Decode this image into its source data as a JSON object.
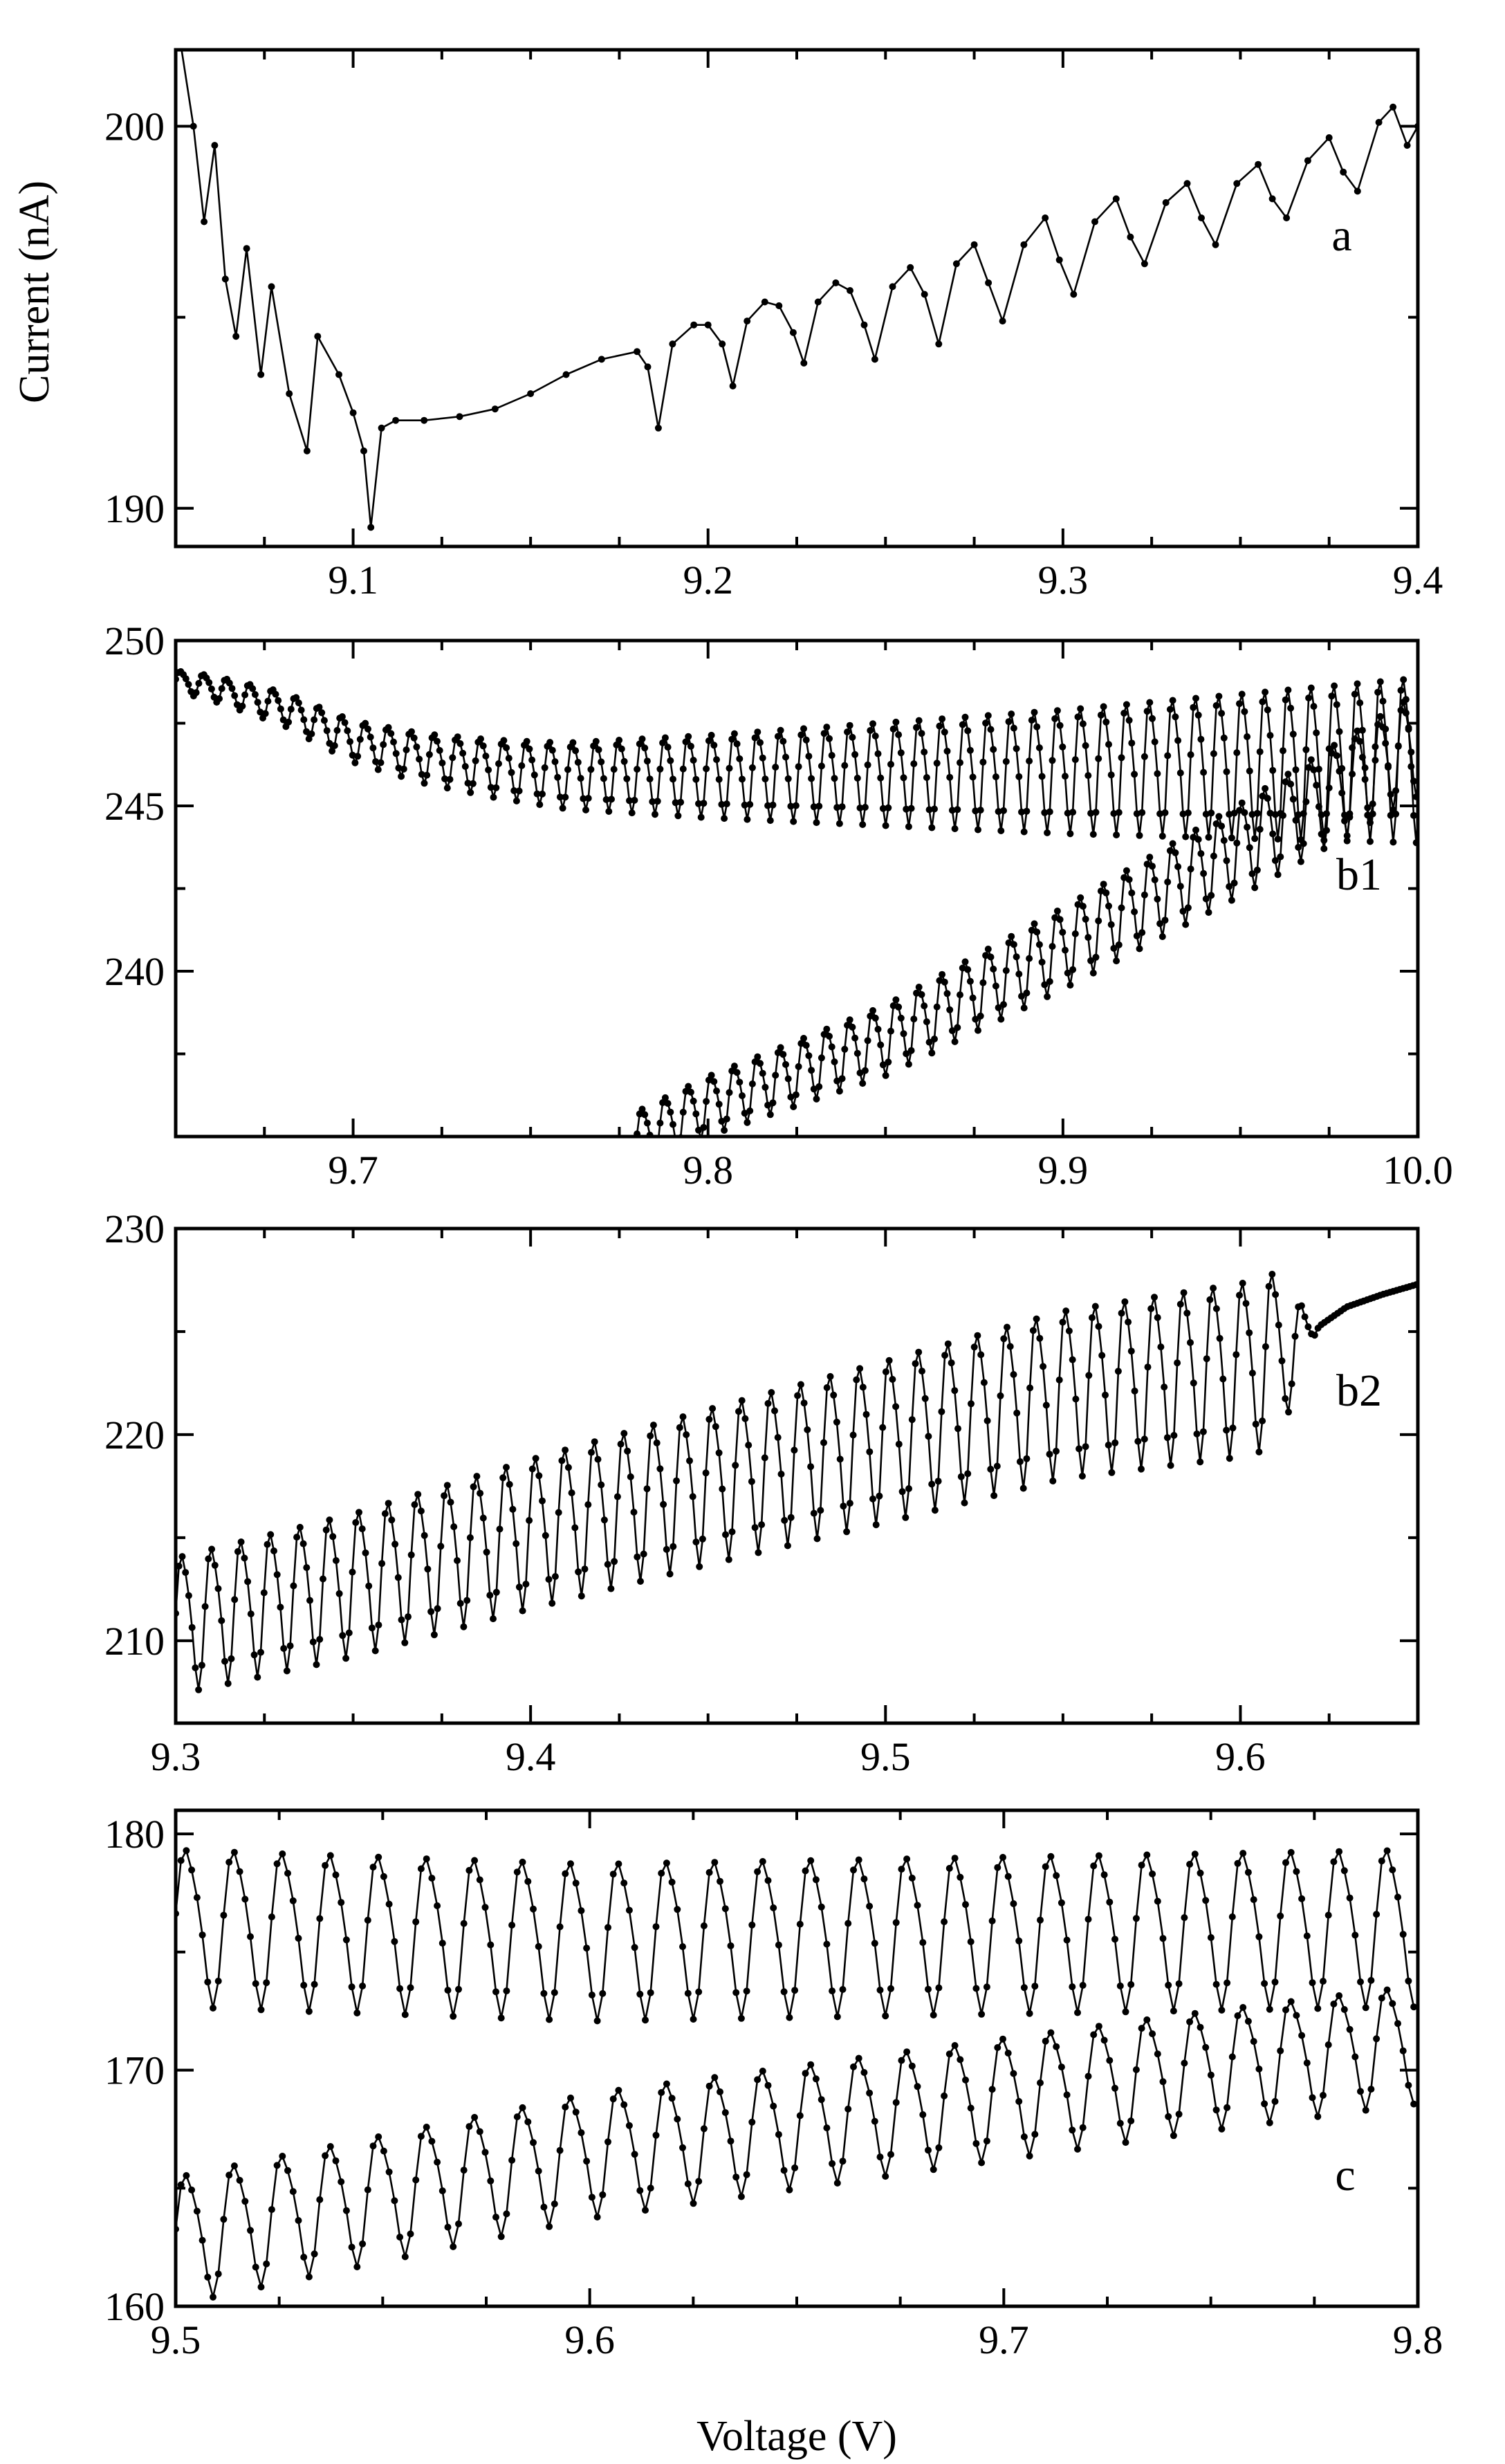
{
  "chart_data": [
    {
      "panel": "a",
      "type": "line",
      "xlim": [
        9.05,
        9.4
      ],
      "ylim": [
        189,
        202
      ],
      "xticks": [
        9.1,
        9.2,
        9.3,
        9.4
      ],
      "xtick_labels": [
        "9.1",
        "9.2",
        "9.3",
        "9.4"
      ],
      "yticks": [
        190,
        200
      ],
      "ytick_labels": [
        "190",
        "200"
      ],
      "ylabel": "Current (nA)",
      "xlabel": "",
      "label": "a",
      "series": [
        {
          "points": [
            [
              9.05,
              203
            ],
            [
              9.055,
              200
            ],
            [
              9.058,
              197.5
            ],
            [
              9.061,
              199.5
            ],
            [
              9.064,
              196
            ],
            [
              9.067,
              194.5
            ],
            [
              9.07,
              196.8
            ],
            [
              9.074,
              193.5
            ],
            [
              9.077,
              195.8
            ],
            [
              9.082,
              193
            ],
            [
              9.087,
              191.5
            ],
            [
              9.09,
              194.5
            ],
            [
              9.096,
              193.5
            ],
            [
              9.1,
              192.5
            ],
            [
              9.103,
              191.5
            ],
            [
              9.105,
              189.5
            ],
            [
              9.108,
              192.1
            ],
            [
              9.112,
              192.3
            ],
            [
              9.12,
              192.3
            ],
            [
              9.13,
              192.4
            ],
            [
              9.14,
              192.6
            ],
            [
              9.15,
              193.0
            ],
            [
              9.16,
              193.5
            ],
            [
              9.17,
              193.9
            ],
            [
              9.18,
              194.1
            ],
            [
              9.183,
              193.7
            ],
            [
              9.186,
              192.1
            ],
            [
              9.19,
              194.3
            ],
            [
              9.196,
              194.8
            ],
            [
              9.2,
              194.8
            ],
            [
              9.204,
              194.3
            ],
            [
              9.207,
              193.2
            ],
            [
              9.211,
              194.9
            ],
            [
              9.216,
              195.4
            ],
            [
              9.22,
              195.3
            ],
            [
              9.224,
              194.6
            ],
            [
              9.227,
              193.8
            ],
            [
              9.231,
              195.4
            ],
            [
              9.236,
              195.9
            ],
            [
              9.24,
              195.7
            ],
            [
              9.244,
              194.8
            ],
            [
              9.247,
              193.9
            ],
            [
              9.252,
              195.8
            ],
            [
              9.257,
              196.3
            ],
            [
              9.261,
              195.6
            ],
            [
              9.265,
              194.3
            ],
            [
              9.27,
              196.4
            ],
            [
              9.275,
              196.9
            ],
            [
              9.279,
              195.9
            ],
            [
              9.283,
              194.9
            ],
            [
              9.289,
              196.9
            ],
            [
              9.295,
              197.6
            ],
            [
              9.299,
              196.5
            ],
            [
              9.303,
              195.6
            ],
            [
              9.309,
              197.5
            ],
            [
              9.315,
              198.1
            ],
            [
              9.319,
              197.1
            ],
            [
              9.323,
              196.4
            ],
            [
              9.329,
              198.0
            ],
            [
              9.335,
              198.5
            ],
            [
              9.339,
              197.6
            ],
            [
              9.343,
              196.9
            ],
            [
              9.349,
              198.5
            ],
            [
              9.355,
              199.0
            ],
            [
              9.359,
              198.1
            ],
            [
              9.363,
              197.6
            ],
            [
              9.369,
              199.1
            ],
            [
              9.375,
              199.7
            ],
            [
              9.379,
              198.8
            ],
            [
              9.383,
              198.3
            ],
            [
              9.389,
              200.1
            ],
            [
              9.393,
              200.5
            ],
            [
              9.397,
              199.5
            ],
            [
              9.4,
              200.0
            ]
          ]
        }
      ]
    },
    {
      "panel": "b1",
      "type": "line",
      "xlim": [
        9.65,
        10.0
      ],
      "ylim": [
        235,
        250
      ],
      "xticks": [
        9.7,
        9.8,
        9.9,
        10.0
      ],
      "xtick_labels": [
        "9.7",
        "9.8",
        "9.9",
        "10.0"
      ],
      "yticks": [
        240,
        245,
        250
      ],
      "ytick_labels": [
        "240",
        "245",
        "250"
      ],
      "xlabel": "",
      "ylabel": "",
      "label": "b1",
      "series": [
        {
          "points": [
            [
              9.65,
              248.8
            ],
            [
              9.66,
              248.6
            ],
            [
              9.67,
              248.3
            ],
            [
              9.68,
              248.0
            ],
            [
              9.69,
              247.5
            ],
            [
              9.7,
              247.0
            ],
            [
              9.72,
              246.5
            ],
            [
              9.74,
              246.2
            ],
            [
              9.76,
              246.0
            ],
            [
              9.8,
              246.0
            ],
            [
              9.85,
              246.1
            ],
            [
              9.9,
              246.2
            ],
            [
              9.95,
              246.4
            ],
            [
              10.0,
              246.6
            ]
          ],
          "oscillation_period": 0.0065,
          "amplitude": [
            0.3,
            2.4
          ]
        },
        {
          "points": [
            [
              9.78,
              235.0
            ],
            [
              9.8,
              236.0
            ],
            [
              9.85,
              238.0
            ],
            [
              9.9,
              240.8
            ],
            [
              9.95,
              243.8
            ],
            [
              10.0,
              247.0
            ]
          ],
          "oscillation_period": 0.0065,
          "amplitude": [
            0.8,
            1.5
          ]
        }
      ]
    },
    {
      "panel": "b2",
      "type": "line",
      "xlim": [
        9.3,
        9.65
      ],
      "ylim": [
        206,
        230
      ],
      "xticks": [
        9.3,
        9.4,
        9.5,
        9.6
      ],
      "xtick_labels": [
        "9.3",
        "9.4",
        "9.5",
        "9.6"
      ],
      "yticks": [
        210,
        220,
        230
      ],
      "ytick_labels": [
        "210",
        "220",
        "230"
      ],
      "xlabel": "",
      "ylabel": "",
      "label": "b2",
      "series": [
        {
          "points": [
            [
              9.3,
              211.0
            ],
            [
              9.35,
              213.0
            ],
            [
              9.4,
              215.5
            ],
            [
              9.45,
              217.8
            ],
            [
              9.5,
              220.0
            ],
            [
              9.55,
              222.3
            ],
            [
              9.6,
              223.5
            ],
            [
              9.61,
              224.0
            ],
            [
              9.62,
              225.0
            ],
            [
              9.63,
              226.2
            ],
            [
              9.64,
              226.8
            ],
            [
              9.65,
              227.3
            ]
          ],
          "oscillation_period": 0.0083,
          "amplitude": [
            3.2,
            4.2
          ]
        }
      ]
    },
    {
      "panel": "c",
      "type": "line",
      "xlim": [
        9.5,
        9.8
      ],
      "ylim": [
        160,
        181
      ],
      "xticks": [
        9.5,
        9.6,
        9.7,
        9.8
      ],
      "xtick_labels": [
        "9.5",
        "9.6",
        "9.7",
        "9.8"
      ],
      "yticks": [
        160,
        170,
        180
      ],
      "ytick_labels": [
        "160",
        "170",
        "180"
      ],
      "xlabel": "Voltage (V)",
      "ylabel": "",
      "label": "c",
      "series": [
        {
          "points": [
            [
              9.5,
              176.3
            ],
            [
              9.6,
              175.7
            ],
            [
              9.7,
              176.0
            ],
            [
              9.8,
              176.3
            ]
          ],
          "oscillation_period": 0.0116,
          "amplitude": [
            3.2,
            3.2
          ]
        },
        {
          "points": [
            [
              9.5,
              163.0
            ],
            [
              9.55,
              164.8
            ],
            [
              9.6,
              166.6
            ],
            [
              9.65,
              167.8
            ],
            [
              9.7,
              169.0
            ],
            [
              9.75,
              170.2
            ],
            [
              9.8,
              171.3
            ]
          ],
          "oscillation_period": 0.0116,
          "amplitude": [
            2.6,
            2.4
          ]
        }
      ]
    }
  ]
}
